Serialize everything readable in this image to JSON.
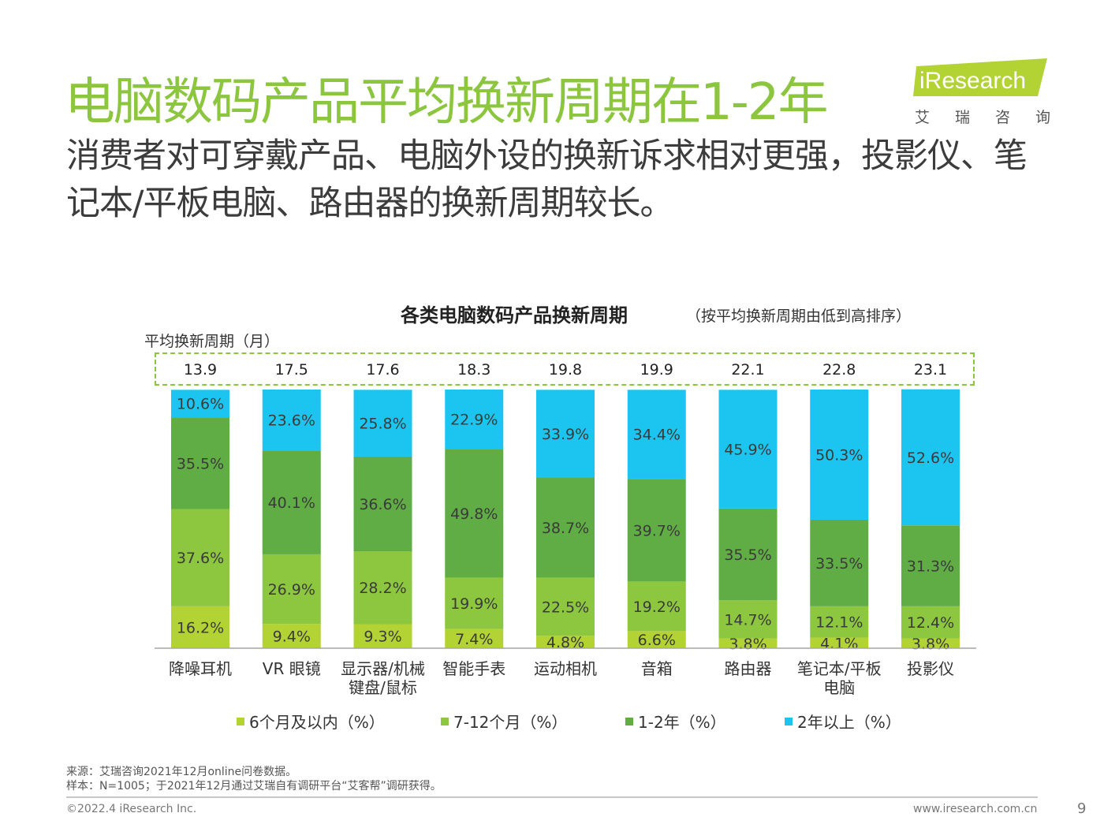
{
  "header": {
    "title": "电脑数码产品平均换新周期在1-2年",
    "subtitle": "消费者对可穿戴产品、电脑外设的换新诉求相对更强，投影仪、笔记本/平板电脑、路由器的换新周期较长。"
  },
  "logo": {
    "text": "iResearch",
    "subtitle_chars": [
      "艾",
      "瑞",
      "咨",
      "询"
    ],
    "color": "#b3d335"
  },
  "chart_data": {
    "type": "bar",
    "stacked": true,
    "percent_stacked": true,
    "title": "各类电脑数码产品换新周期",
    "note": "（按平均换新周期由低到高排序）",
    "avg_label": "平均换新周期（月）",
    "categories": [
      "降噪耳机",
      "VR 眼镜",
      "显示器/机械键盘/鼠标",
      "智能手表",
      "运动相机",
      "音箱",
      "路由器",
      "笔记本/平板电脑",
      "投影仪"
    ],
    "category_display_lines": [
      [
        "降噪耳机"
      ],
      [
        "VR 眼镜"
      ],
      [
        "显示器/机械",
        "键盘/鼠标"
      ],
      [
        "智能手表"
      ],
      [
        "运动相机"
      ],
      [
        "音箱"
      ],
      [
        "路由器"
      ],
      [
        "笔记本/平板",
        "电脑"
      ],
      [
        "投影仪"
      ]
    ],
    "avg_values": [
      "13.9",
      "17.5",
      "17.6",
      "18.3",
      "19.8",
      "19.9",
      "22.1",
      "22.8",
      "23.1"
    ],
    "series": [
      {
        "name": "6个月及以内（%）",
        "color": "#b3d335",
        "values": [
          16.2,
          9.4,
          9.3,
          7.4,
          4.8,
          6.6,
          3.8,
          4.1,
          3.8
        ]
      },
      {
        "name": "7-12个月（%）",
        "color": "#8dc63f",
        "values": [
          37.6,
          26.9,
          28.2,
          19.9,
          22.5,
          19.2,
          14.7,
          12.1,
          12.4
        ]
      },
      {
        "name": "1-2年（%）",
        "color": "#61ad45",
        "values": [
          35.5,
          40.1,
          36.6,
          49.8,
          38.7,
          39.7,
          35.5,
          33.5,
          31.3
        ]
      },
      {
        "name": "2年以上（%）",
        "color": "#1cc5ef",
        "values": [
          10.6,
          23.6,
          25.8,
          22.9,
          33.9,
          34.4,
          45.9,
          50.3,
          52.6
        ]
      }
    ],
    "ylim": [
      0,
      100
    ]
  },
  "footnotes": {
    "source": "来源：艾瑞咨询2021年12月online问卷数据。",
    "sample": "样本：N=1005；于2021年12月通过艾瑞自有调研平台“艾客帮”调研获得。"
  },
  "footer": {
    "copyright": "©2022.4 iResearch Inc.",
    "url": "www.iresearch.com.cn",
    "page": "9"
  }
}
